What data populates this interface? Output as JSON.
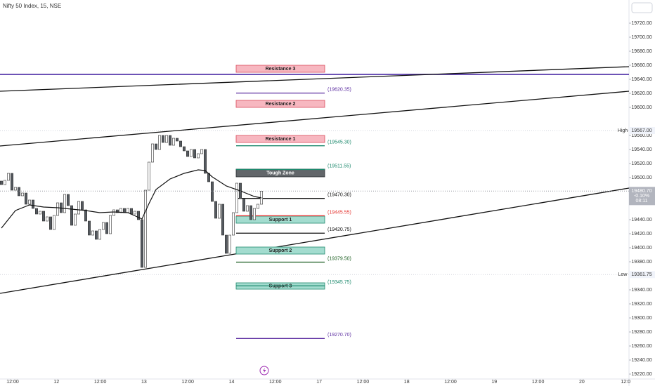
{
  "chart_data": {
    "type": "candlestick",
    "title": "Nifty 50 Index, 15, NSE",
    "open": [
      19495,
      19490,
      19496,
      19506,
      19482,
      19486,
      19474,
      19478,
      19462,
      19468,
      19456,
      19448,
      19452,
      19438,
      19444,
      19426,
      19446,
      19464,
      19450,
      19476,
      19460,
      19432,
      19448,
      19466,
      19454,
      19438,
      19418,
      19424,
      19412,
      19426,
      19436,
      19420,
      19446,
      19454,
      19450,
      19456,
      19450,
      19456,
      19448,
      19452,
      19440,
      19372,
      19482,
      19522,
      19548,
      19540,
      19560,
      19550,
      19560,
      19546,
      19556,
      19552,
      19544,
      19538,
      19530,
      19540,
      19528,
      19534,
      19540,
      19506,
      19494,
      19466,
      19442,
      19462,
      19418,
      19392,
      19418,
      19450,
      19492,
      19470,
      19452,
      19460,
      19440,
      19456,
      19462
    ],
    "high": {
      "label": "High",
      "value": 19567,
      "value_label": "19567.00"
    },
    "low": {
      "label": "Low",
      "value": 19361.75,
      "value_label": "19361.75"
    },
    "close": [
      19490,
      19496,
      19506,
      19482,
      19486,
      19474,
      19478,
      19462,
      19468,
      19456,
      19448,
      19452,
      19438,
      19444,
      19426,
      19446,
      19464,
      19450,
      19476,
      19460,
      19432,
      19448,
      19466,
      19454,
      19438,
      19418,
      19424,
      19412,
      19426,
      19436,
      19420,
      19446,
      19454,
      19450,
      19456,
      19450,
      19456,
      19448,
      19452,
      19440,
      19372,
      19482,
      19522,
      19548,
      19540,
      19560,
      19550,
      19560,
      19546,
      19556,
      19552,
      19544,
      19538,
      19530,
      19540,
      19528,
      19534,
      19540,
      19506,
      19494,
      19466,
      19442,
      19462,
      19418,
      19392,
      19418,
      19450,
      19492,
      19470,
      19452,
      19460,
      19440,
      19456,
      19462,
      19480.7
    ],
    "ma": {
      "x": [
        0,
        4,
        8,
        12,
        16,
        20,
        24,
        28,
        32,
        36,
        40,
        42,
        44,
        48,
        52,
        56,
        58,
        60,
        64,
        68,
        72,
        74
      ],
      "values": [
        19428,
        19453,
        19461,
        19458,
        19457,
        19455,
        19453,
        19450,
        19451,
        19450,
        19441,
        19463,
        19483,
        19498,
        19506,
        19511,
        19510,
        19501,
        19488,
        19481,
        19473,
        19471
      ]
    },
    "trendlines": [
      {
        "start": 19623,
        "end": 19658
      },
      {
        "start": 19545,
        "end": 19623
      },
      {
        "start": 19335,
        "end": 19485
      }
    ],
    "hlines": [
      {
        "value": 19647,
        "color": "#3d1a9e"
      }
    ],
    "zones": [
      {
        "label": "Resistance 3",
        "top": 19660,
        "bottom": 19650,
        "fill": "#f7b7c0",
        "stroke": "#d94a5a",
        "text": "#222"
      },
      {
        "label": "Resistance 2",
        "top": 19610,
        "bottom": 19600,
        "fill": "#f7b7c0",
        "stroke": "#d94a5a",
        "text": "#222"
      },
      {
        "label": "Resistance 1",
        "top": 19560,
        "bottom": 19550,
        "fill": "#f7b7c0",
        "stroke": "#d94a5a",
        "text": "#222"
      },
      {
        "label": "Tough Zone",
        "top": 19512,
        "bottom": 19501,
        "fill": "#62666a",
        "stroke": "#2c2f32",
        "text": "#fff"
      },
      {
        "label": "Support 1",
        "top": 19445,
        "bottom": 19435,
        "fill": "#a3dccf",
        "stroke": "#1e8a6e",
        "text": "#222"
      },
      {
        "label": "Support 2",
        "top": 19401,
        "bottom": 19391,
        "fill": "#a3dccf",
        "stroke": "#1e8a6e",
        "text": "#222"
      },
      {
        "label": "Support 3",
        "top": 19350,
        "bottom": 19341,
        "fill": "#a3dccf",
        "stroke": "#1e8a6e",
        "text": "#222"
      }
    ],
    "levels": [
      {
        "value": 19620.35,
        "label": "(19620.35)",
        "color": "#5b2ca0"
      },
      {
        "value": 19545.3,
        "label": "(19545.30)",
        "color": "#1e8a6e"
      },
      {
        "value": 19511.55,
        "label": "(19511.55)",
        "color": "#1e8a6e"
      },
      {
        "value": 19470.3,
        "label": "(19470.30)",
        "color": "#111111"
      },
      {
        "value": 19445.55,
        "label": "(19445.55)",
        "color": "#e53935"
      },
      {
        "value": 19420.75,
        "label": "(19420.75)",
        "color": "#111111"
      },
      {
        "value": 19379.5,
        "label": "(19379.50)",
        "color": "#1b5e20"
      },
      {
        "value": 19345.75,
        "label": "(19345.75)",
        "color": "#1e8a6e"
      },
      {
        "value": 19270.7,
        "label": "(19270.70)",
        "color": "#5b2ca0"
      }
    ],
    "last": {
      "value": 19480.7,
      "value_label": "19480.70",
      "change": "-0.10%",
      "countdown": "08:11"
    },
    "x_labels": [
      "12:00",
      "12",
      "12:00",
      "13",
      "12:00",
      "14",
      "12:00",
      "17",
      "12:00",
      "18",
      "12:00",
      "19",
      "12:00",
      "20",
      "12:0"
    ],
    "ylim": [
      19213,
      19753
    ],
    "yticks": [
      {
        "value": 19220,
        "label": "19220.00"
      },
      {
        "value": 19240,
        "label": "19240.00"
      },
      {
        "value": 19260,
        "label": "19260.00"
      },
      {
        "value": 19280,
        "label": "19280.00"
      },
      {
        "value": 19300,
        "label": "19300.00"
      },
      {
        "value": 19320,
        "label": "19320.00"
      },
      {
        "value": 19340,
        "label": "19340.00"
      },
      {
        "value": 19380,
        "label": "19380.00"
      },
      {
        "value": 19400,
        "label": "19400.00"
      },
      {
        "value": 19420,
        "label": "19420.00"
      },
      {
        "value": 19440,
        "label": "19440.00"
      },
      {
        "value": 19500,
        "label": "19500.00"
      },
      {
        "value": 19520,
        "label": "19520.00"
      },
      {
        "value": 19540,
        "label": "19540.00"
      },
      {
        "value": 19560,
        "label": "19560.00"
      },
      {
        "value": 19600,
        "label": "19600.00"
      },
      {
        "value": 19620,
        "label": "19620.00"
      },
      {
        "value": 19640,
        "label": "19640.00"
      },
      {
        "value": 19660,
        "label": "19660.00"
      },
      {
        "value": 19680,
        "label": "19680.00"
      },
      {
        "value": 19700,
        "label": "19700.00"
      },
      {
        "value": 19720,
        "label": "19720.00"
      }
    ]
  }
}
